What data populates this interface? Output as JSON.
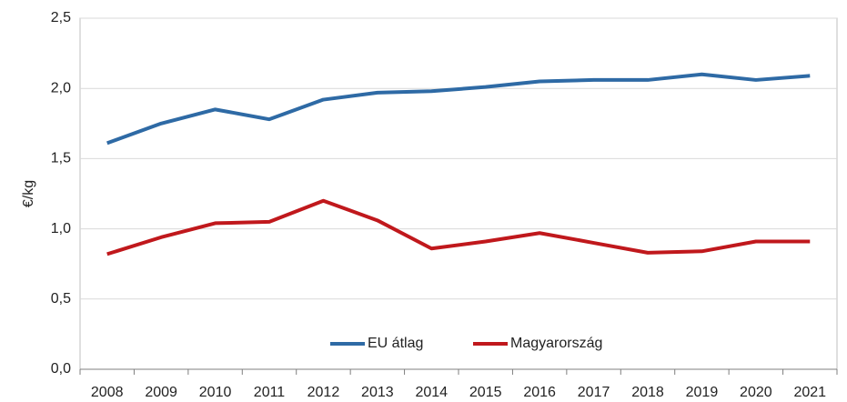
{
  "chart_data": {
    "type": "line",
    "y_label": "€/kg",
    "categories": [
      "2008",
      "2009",
      "2010",
      "2011",
      "2012",
      "2013",
      "2014",
      "2015",
      "2016",
      "2017",
      "2018",
      "2019",
      "2020",
      "2021"
    ],
    "series": [
      {
        "name": "EU átlag",
        "color": "#2e6aa5",
        "values": [
          1.61,
          1.75,
          1.85,
          1.78,
          1.92,
          1.97,
          1.98,
          2.01,
          2.05,
          2.06,
          2.06,
          2.1,
          2.06,
          2.09
        ]
      },
      {
        "name": "Magyarország",
        "color": "#c0181c",
        "values": [
          0.82,
          0.94,
          1.04,
          1.05,
          1.2,
          1.06,
          0.86,
          0.91,
          0.97,
          0.9,
          0.83,
          0.84,
          0.91,
          0.91
        ]
      }
    ],
    "ylim": [
      0,
      2.5
    ],
    "yticks": [
      {
        "value": 0,
        "label": "0,0"
      },
      {
        "value": 0.5,
        "label": "0,5"
      },
      {
        "value": 1,
        "label": "1,0"
      },
      {
        "value": 1.5,
        "label": "1,5"
      },
      {
        "value": 2,
        "label": "2,0"
      },
      {
        "value": 2.5,
        "label": "2,5"
      }
    ],
    "grid": true,
    "legend": "bottom"
  }
}
